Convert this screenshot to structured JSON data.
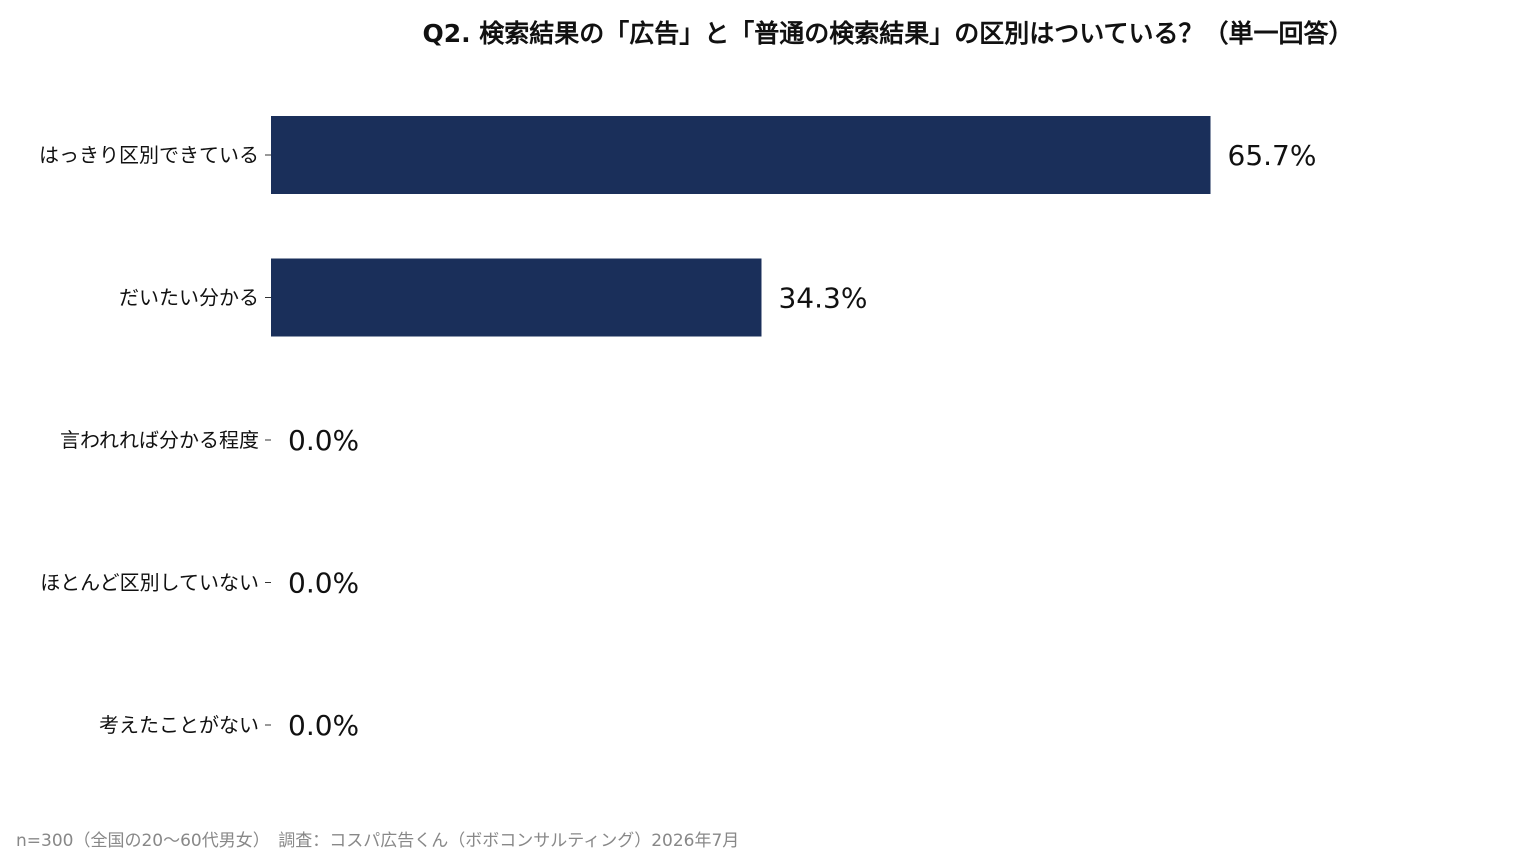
{
  "chart_data": {
    "type": "bar",
    "orientation": "horizontal",
    "title": "Q2. 検索結果の「広告」と「普通の検索結果」の区別はついている？（単一回答）",
    "categories": [
      "はっきり区別できている",
      "だいたい分かる",
      "言われれば分かる程度",
      "ほとんど区別していない",
      "考えたことがない"
    ],
    "values": [
      65.7,
      34.3,
      0.0,
      0.0,
      0.0
    ],
    "value_labels": [
      "65.7%",
      "34.3%",
      "0.0%",
      "0.0%",
      "0.0%"
    ],
    "xlim": [
      0,
      100
    ],
    "bar_color": "#1a2f5a",
    "grid": false,
    "xlabel": "",
    "ylabel": ""
  },
  "footnote": "n=300（全国の20〜60代男女）　調査：コスパ広告くん（ボボコンサルティング）2026年7月"
}
